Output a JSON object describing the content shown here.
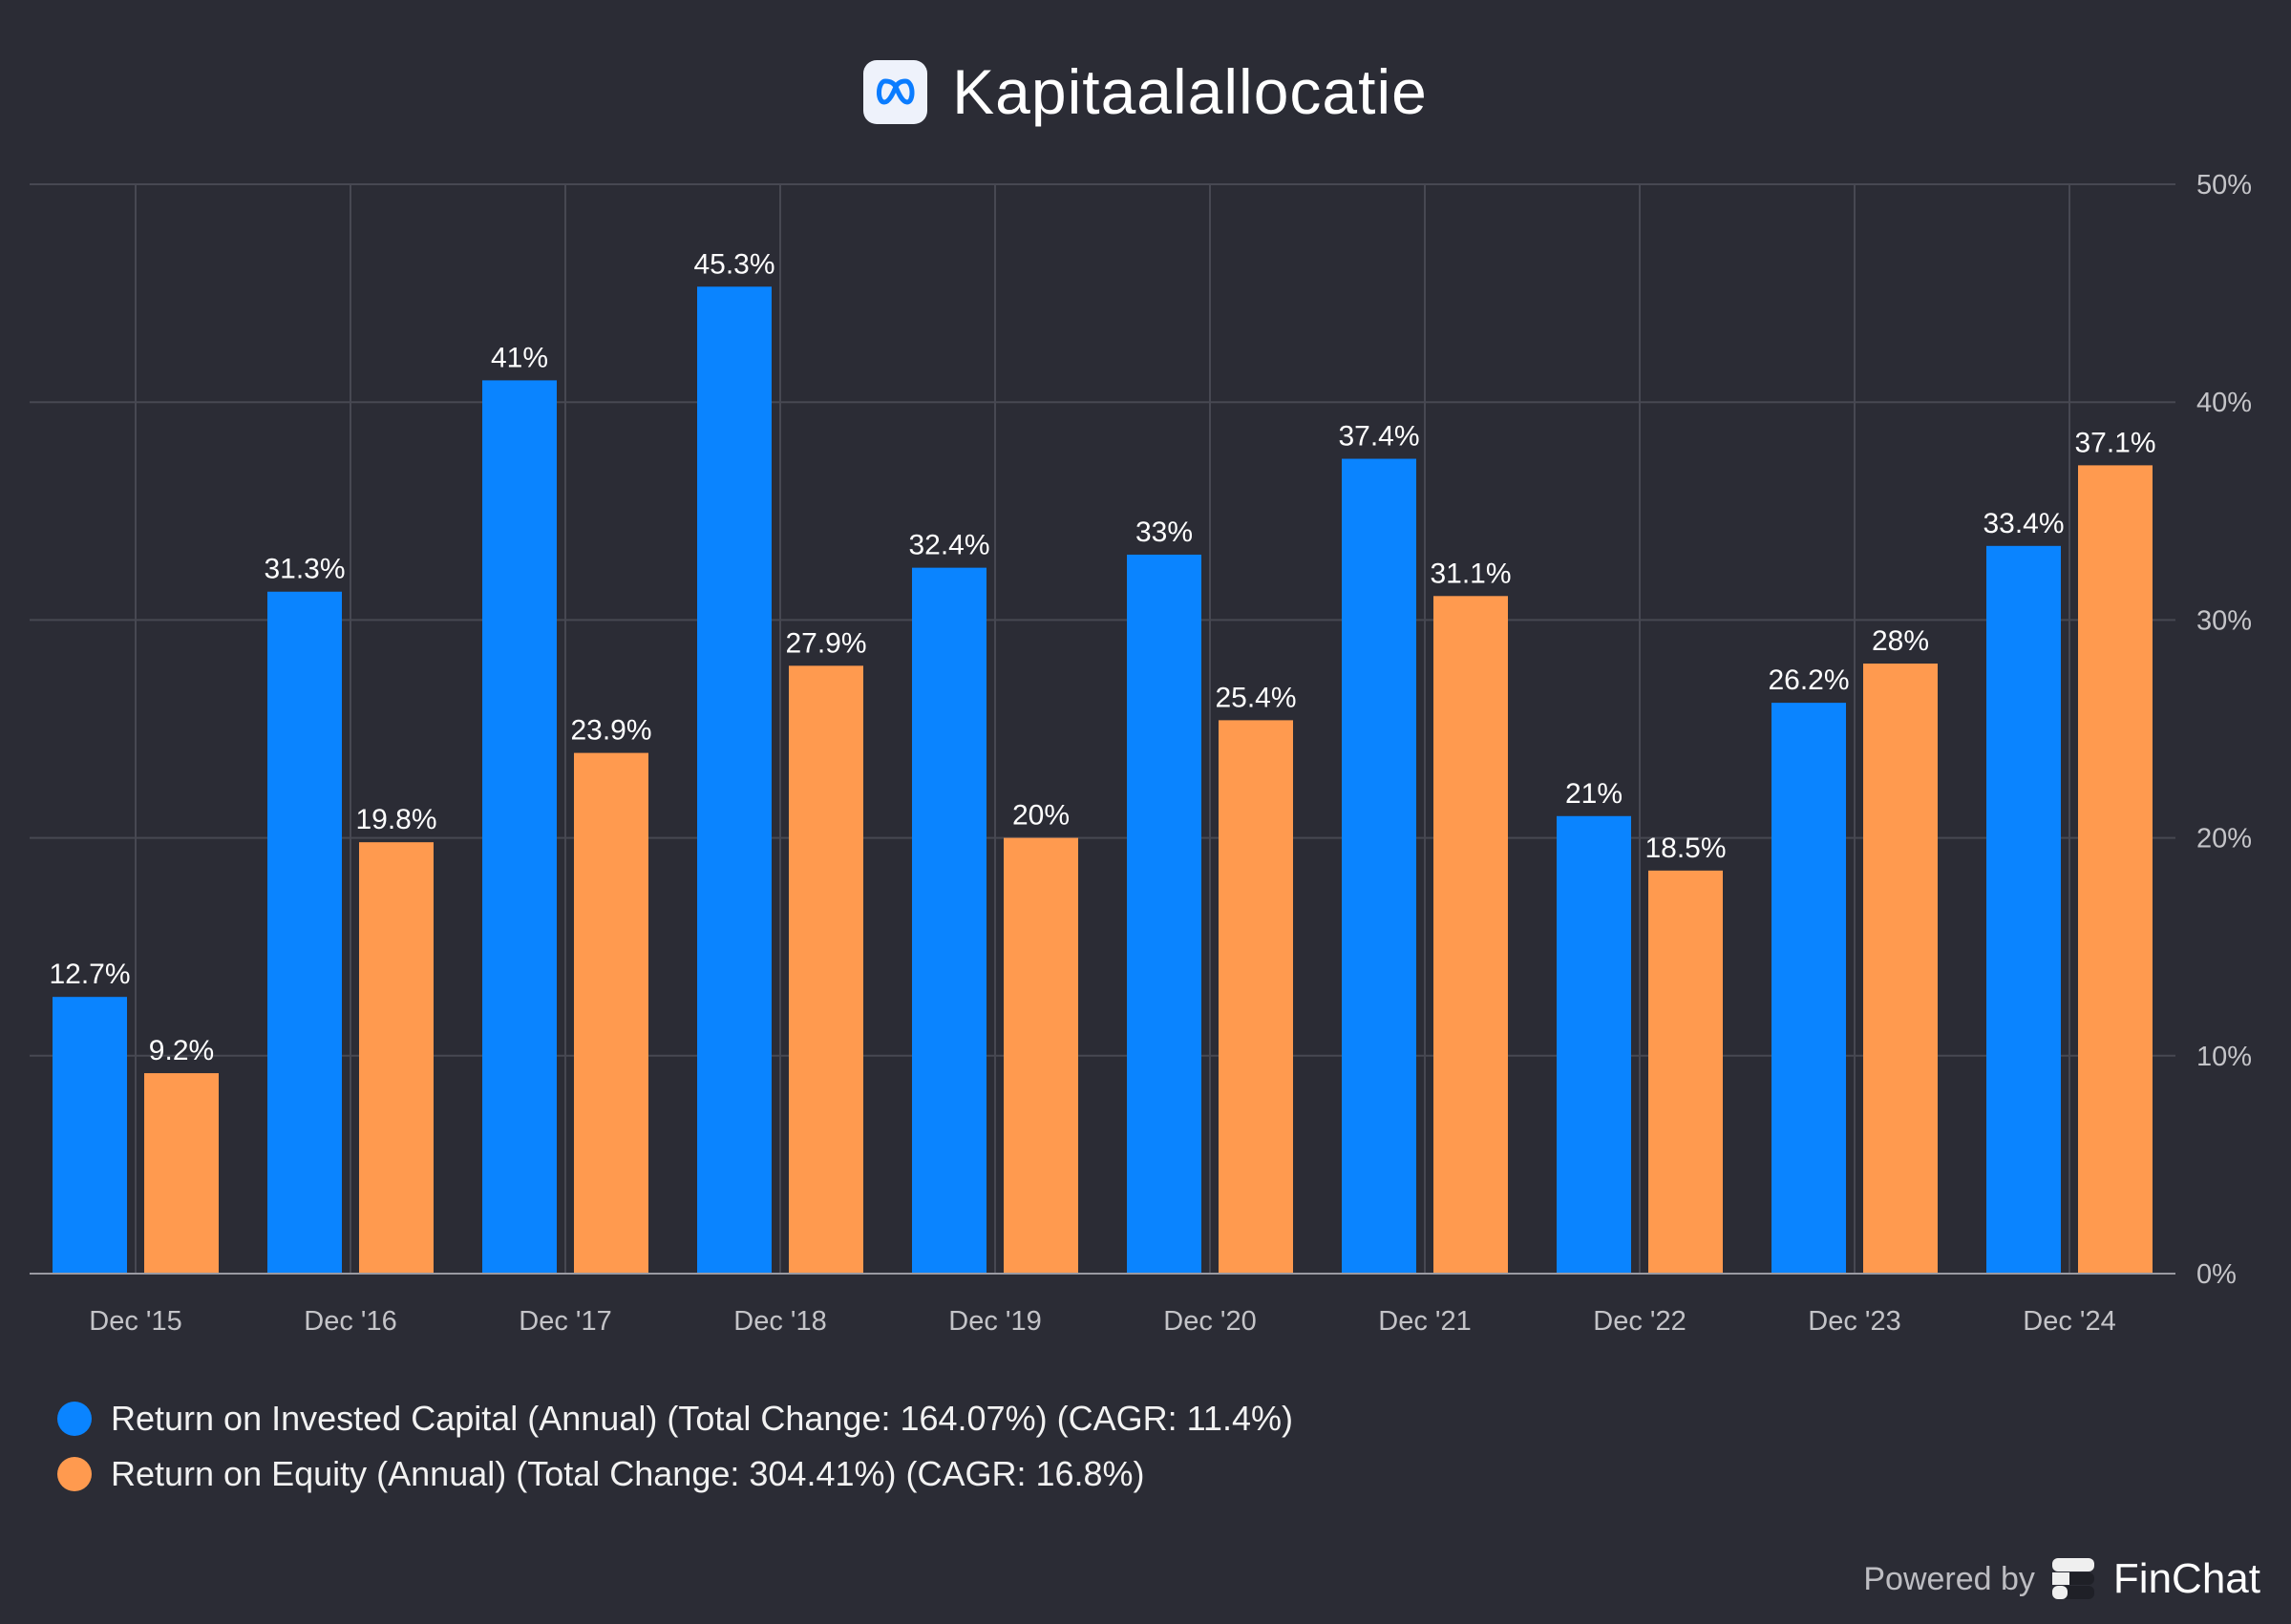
{
  "title": "Kapitaalallocatie",
  "logo_icon": "meta-infinity-icon",
  "colors": {
    "roic": "#0a84ff",
    "roe": "#ff9a4f",
    "background": "#2b2c35"
  },
  "chart_data": {
    "type": "bar",
    "title": "Kapitaalallocatie",
    "categories": [
      "Dec '15",
      "Dec '16",
      "Dec '17",
      "Dec '18",
      "Dec '19",
      "Dec '20",
      "Dec '21",
      "Dec '22",
      "Dec '23",
      "Dec '24"
    ],
    "series": [
      {
        "name": "Return on Invested Capital (Annual) (Total Change: 164.07%) (CAGR: 11.4%)",
        "values": [
          12.7,
          31.3,
          41,
          45.3,
          32.4,
          33,
          37.4,
          21,
          26.2,
          33.4
        ],
        "labels": [
          "12.7%",
          "31.3%",
          "41%",
          "45.3%",
          "32.4%",
          "33%",
          "37.4%",
          "21%",
          "26.2%",
          "33.4%"
        ]
      },
      {
        "name": "Return on Equity (Annual) (Total Change: 304.41%) (CAGR: 16.8%)",
        "values": [
          9.2,
          19.8,
          23.9,
          27.9,
          20,
          25.4,
          31.1,
          18.5,
          28,
          37.1
        ],
        "labels": [
          "9.2%",
          "19.8%",
          "23.9%",
          "27.9%",
          "20%",
          "25.4%",
          "31.1%",
          "18.5%",
          "28%",
          "37.1%"
        ]
      }
    ],
    "y_ticks": [
      "0%",
      "10%",
      "20%",
      "30%",
      "40%",
      "50%"
    ],
    "ylim": [
      0,
      50
    ],
    "grid": true,
    "y_axis_side": "right",
    "legend_position": "bottom-left"
  },
  "footer": {
    "powered_by": "Powered by",
    "brand": "FinChat"
  }
}
